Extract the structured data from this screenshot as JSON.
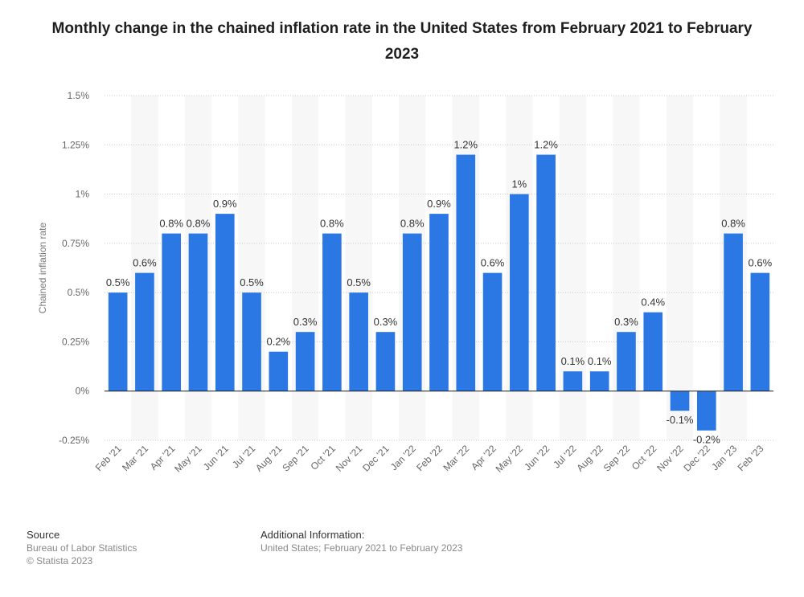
{
  "chart_data": {
    "type": "bar",
    "title": "Monthly change in the chained inflation rate in the United States from February 2021 to February 2023",
    "ylabel": "Chained inflation rate",
    "xlabel": "",
    "categories": [
      "Feb '21",
      "Mar '21",
      "Apr '21",
      "May '21",
      "Jun '21",
      "Jul '21",
      "Aug '21",
      "Sep '21",
      "Oct '21",
      "Nov '21",
      "Dec '21",
      "Jan '22",
      "Feb '22",
      "Mar '22",
      "Apr '22",
      "May '22",
      "Jun '22",
      "Jul '22",
      "Aug '22",
      "Sep '22",
      "Oct '22",
      "Nov '22",
      "Dec '22",
      "Jan '23",
      "Feb '23"
    ],
    "values": [
      0.5,
      0.6,
      0.8,
      0.8,
      0.9,
      0.5,
      0.2,
      0.3,
      0.8,
      0.5,
      0.3,
      0.8,
      0.9,
      1.2,
      0.6,
      1.0,
      1.2,
      0.1,
      0.1,
      0.3,
      0.4,
      -0.1,
      -0.2,
      0.8,
      0.6
    ],
    "data_labels": [
      "0.5%",
      "0.6%",
      "0.8%",
      "0.8%",
      "0.9%",
      "0.5%",
      "0.2%",
      "0.3%",
      "0.8%",
      "0.5%",
      "0.3%",
      "0.8%",
      "0.9%",
      "1.2%",
      "0.6%",
      "1%",
      "1.2%",
      "0.1%",
      "0.1%",
      "0.3%",
      "0.4%",
      "-0.1%",
      "-0.2%",
      "0.8%",
      "0.6%"
    ],
    "yticks": [
      -0.25,
      0,
      0.25,
      0.5,
      0.75,
      1.0,
      1.25,
      1.5
    ],
    "ytick_labels": [
      "-0.25%",
      "0%",
      "0.25%",
      "0.5%",
      "0.75%",
      "1%",
      "1.25%",
      "1.5%"
    ],
    "ylim": [
      -0.25,
      1.5
    ],
    "grid": true,
    "legend": false,
    "bar_color": "#2b78e4"
  },
  "footer": {
    "source_heading": "Source",
    "source_lines": [
      "Bureau of Labor Statistics",
      "© Statista 2023"
    ],
    "info_heading": "Additional Information:",
    "info_lines": [
      "United States; February 2021 to February 2023"
    ]
  }
}
